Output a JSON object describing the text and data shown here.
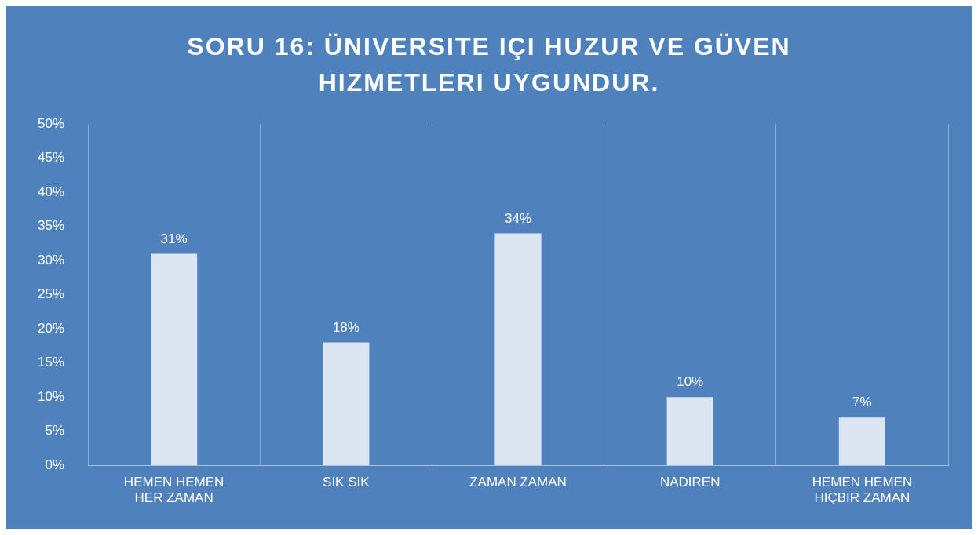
{
  "chart_data": {
    "type": "bar",
    "title": "SORU 16: ÜNIVERSITE IÇI HUZUR VE GÜVEN HIZMETLERI UYGUNDUR.",
    "categories": [
      "HEMEN HEMEN HER ZAMAN",
      "SIK SIK",
      "ZAMAN ZAMAN",
      "NADIREN",
      "HEMEN HEMEN HIÇBIR ZAMAN"
    ],
    "values": [
      31,
      18,
      34,
      10,
      7
    ],
    "value_labels": [
      "31%",
      "18%",
      "34%",
      "10%",
      "7%"
    ],
    "color": "#dce6f2",
    "ylim": [
      0,
      50
    ],
    "yticks": [
      {
        "value": 0,
        "label": "0%"
      },
      {
        "value": 5,
        "label": "5%"
      },
      {
        "value": 10,
        "label": "10%"
      },
      {
        "value": 15,
        "label": "15%"
      },
      {
        "value": 20,
        "label": "20%"
      },
      {
        "value": 25,
        "label": "25%"
      },
      {
        "value": 30,
        "label": "30%"
      },
      {
        "value": 35,
        "label": "35%"
      },
      {
        "value": 40,
        "label": "40%"
      },
      {
        "value": 45,
        "label": "45%"
      },
      {
        "value": 50,
        "label": "50%"
      }
    ],
    "grid": "x",
    "legend": false
  }
}
